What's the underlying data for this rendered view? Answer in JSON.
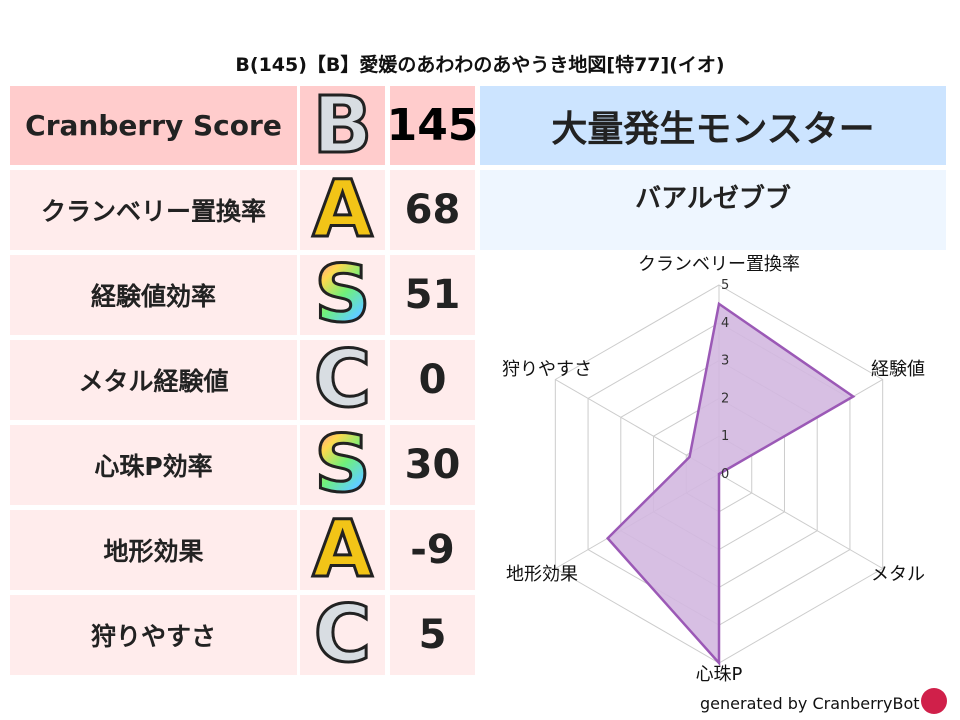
{
  "title": "B(145)【B】愛媛のあわわのあやうき地図[特77](イオ)",
  "score": {
    "label": "Cranberry Score",
    "grade": "B",
    "value": "145"
  },
  "rows": [
    {
      "label": "クランベリー置換率",
      "grade": "A",
      "value": "68"
    },
    {
      "label": "経験値効率",
      "grade": "S",
      "value": "51"
    },
    {
      "label": "メタル経験値",
      "grade": "C",
      "value": "0"
    },
    {
      "label": "心珠P効率",
      "grade": "S",
      "value": "30"
    },
    {
      "label": "地形効果",
      "grade": "A",
      "value": "-9"
    },
    {
      "label": "狩りやすさ",
      "grade": "C",
      "value": "5"
    }
  ],
  "monster": {
    "header": "大量発生モンスター",
    "name": "バアルゼブブ"
  },
  "chart_data": {
    "type": "radar",
    "axes": [
      "クランベリー置換率",
      "経験値",
      "メタル",
      "心珠P",
      "地形効果",
      "狩りやすさ"
    ],
    "values": [
      4.5,
      4.1,
      0,
      5,
      3.4,
      0.9
    ],
    "range": [
      0,
      5
    ],
    "ticks": [
      "0",
      "1",
      "2",
      "3",
      "4",
      "5"
    ],
    "fill_color": "#d3b8e0",
    "line_color": "#9b59b6",
    "grid": true
  },
  "footer": "generated by CranberryBot"
}
